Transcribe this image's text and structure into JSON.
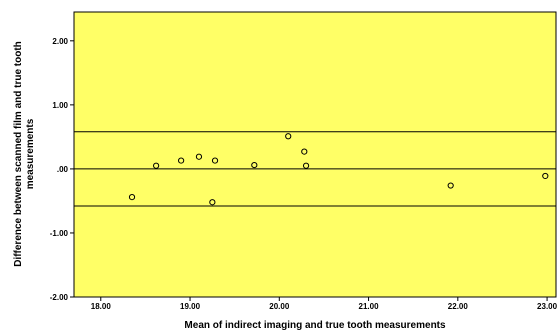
{
  "chart_data": {
    "type": "scatter",
    "title": "",
    "xlabel": "Mean of indirect imaging and true tooth measurements",
    "ylabel_lines": [
      "Difference between scanned film and true tooth",
      "measurements"
    ],
    "xlim": [
      17.7,
      23.1
    ],
    "ylim": [
      -2.0,
      2.45
    ],
    "x_ticks": [
      18.0,
      19.0,
      20.0,
      21.0,
      22.0,
      23.0
    ],
    "x_tick_labels": [
      "18.00",
      "19.00",
      "20.00",
      "21.00",
      "22.00",
      "23.00"
    ],
    "y_ticks": [
      -2.0,
      -1.0,
      0.0,
      1.0,
      2.0
    ],
    "y_tick_labels": [
      "-2.00",
      "-1.00",
      ".00",
      "1.00",
      "2.00"
    ],
    "reference_lines": [
      0.58,
      0.0,
      -0.58
    ],
    "grid": false,
    "plot_background": "#ffff66",
    "marker": "open-circle",
    "points": [
      {
        "x": 18.35,
        "y": -0.44
      },
      {
        "x": 18.62,
        "y": 0.05
      },
      {
        "x": 18.9,
        "y": 0.13
      },
      {
        "x": 19.1,
        "y": 0.19
      },
      {
        "x": 19.25,
        "y": -0.52
      },
      {
        "x": 19.28,
        "y": 0.13
      },
      {
        "x": 19.72,
        "y": 0.06
      },
      {
        "x": 20.1,
        "y": 0.51
      },
      {
        "x": 20.28,
        "y": 0.27
      },
      {
        "x": 20.3,
        "y": 0.05
      },
      {
        "x": 21.92,
        "y": -0.26
      },
      {
        "x": 22.98,
        "y": -0.11
      }
    ]
  }
}
